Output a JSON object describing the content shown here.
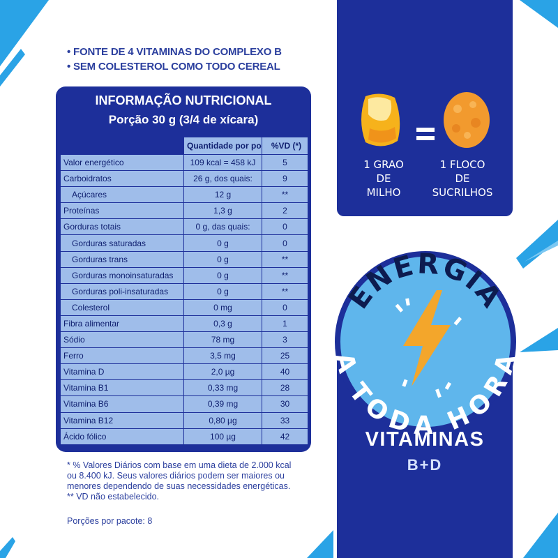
{
  "bullets": {
    "line1": "• FONTE DE 4 VITAMINAS DO COMPLEXO B",
    "line2": "• SEM COLESTEROL COMO TODO CEREAL"
  },
  "label": {
    "title": "INFORMAÇÃO NUTRICIONAL",
    "serving": "Porção 30 g (3/4 de xícara)",
    "header": {
      "amount": "Quantidade por porção",
      "vd": "%VD (*)"
    },
    "rows": [
      {
        "name": "Valor energético",
        "amount": "109 kcal = 458 kJ",
        "vd": "5"
      },
      {
        "name": "Carboidratos",
        "amount": "26 g, dos quais:",
        "vd": "9"
      },
      {
        "name": "Açúcares",
        "amount": "12 g",
        "vd": "**"
      },
      {
        "name": "Proteínas",
        "amount": "1,3 g",
        "vd": "2"
      },
      {
        "name": "Gorduras totais",
        "amount": "0 g, das quais:",
        "vd": "0"
      },
      {
        "name": "Gorduras saturadas",
        "amount": "0 g",
        "vd": "0"
      },
      {
        "name": "Gorduras trans",
        "amount": "0 g",
        "vd": "**"
      },
      {
        "name": "Gorduras monoinsaturadas",
        "amount": "0 g",
        "vd": "**"
      },
      {
        "name": "Gorduras poli-insaturadas",
        "amount": "0 g",
        "vd": "**"
      },
      {
        "name": "Colesterol",
        "amount": "0 mg",
        "vd": "0"
      },
      {
        "name": "Fibra alimentar",
        "amount": "0,3 g",
        "vd": "1"
      },
      {
        "name": "Sódio",
        "amount": "78 mg",
        "vd": "3"
      },
      {
        "name": "Ferro",
        "amount": "3,5 mg",
        "vd": "25"
      },
      {
        "name": "Vitamina D",
        "amount": "2,0 µg",
        "vd": "40"
      },
      {
        "name": "Vitamina B1",
        "amount": "0,33 mg",
        "vd": "28"
      },
      {
        "name": "Vitamina B6",
        "amount": "0,39 mg",
        "vd": "30"
      },
      {
        "name": "Vitamina B12",
        "amount": "0,80 µg",
        "vd": "33"
      },
      {
        "name": "Ácido fólico",
        "amount": "100 µg",
        "vd": "42"
      }
    ]
  },
  "footnote": {
    "line1": "* % Valores Diários com base em uma dieta de 2.000 kcal",
    "line2": "ou 8.400 kJ. Seus valores diários podem ser maiores ou",
    "line3": "menores dependendo de suas necessidades energéticas.",
    "line4": "** VD não estabelecido."
  },
  "portions": "Porções por pacote: 8",
  "comparison": {
    "corn_caption_1": "1 GRAO DE",
    "corn_caption_2": "MILHO",
    "flake_caption_1": "1 FLOCO DE",
    "flake_caption_2": "SUCRILHOS"
  },
  "badge": {
    "top_text": "ENERGIA",
    "bottom_text": "A TODA HORA"
  },
  "vitamins": {
    "title": "VITAMINAS",
    "subtitle": "B+D"
  },
  "colors": {
    "brand_blue": "#1d2f9a",
    "table_cell": "#9fbdea",
    "badge_light_blue": "#5fb6ec",
    "bolt_orange": "#f3a62b",
    "accent_stripe": "#2aa3e6"
  }
}
